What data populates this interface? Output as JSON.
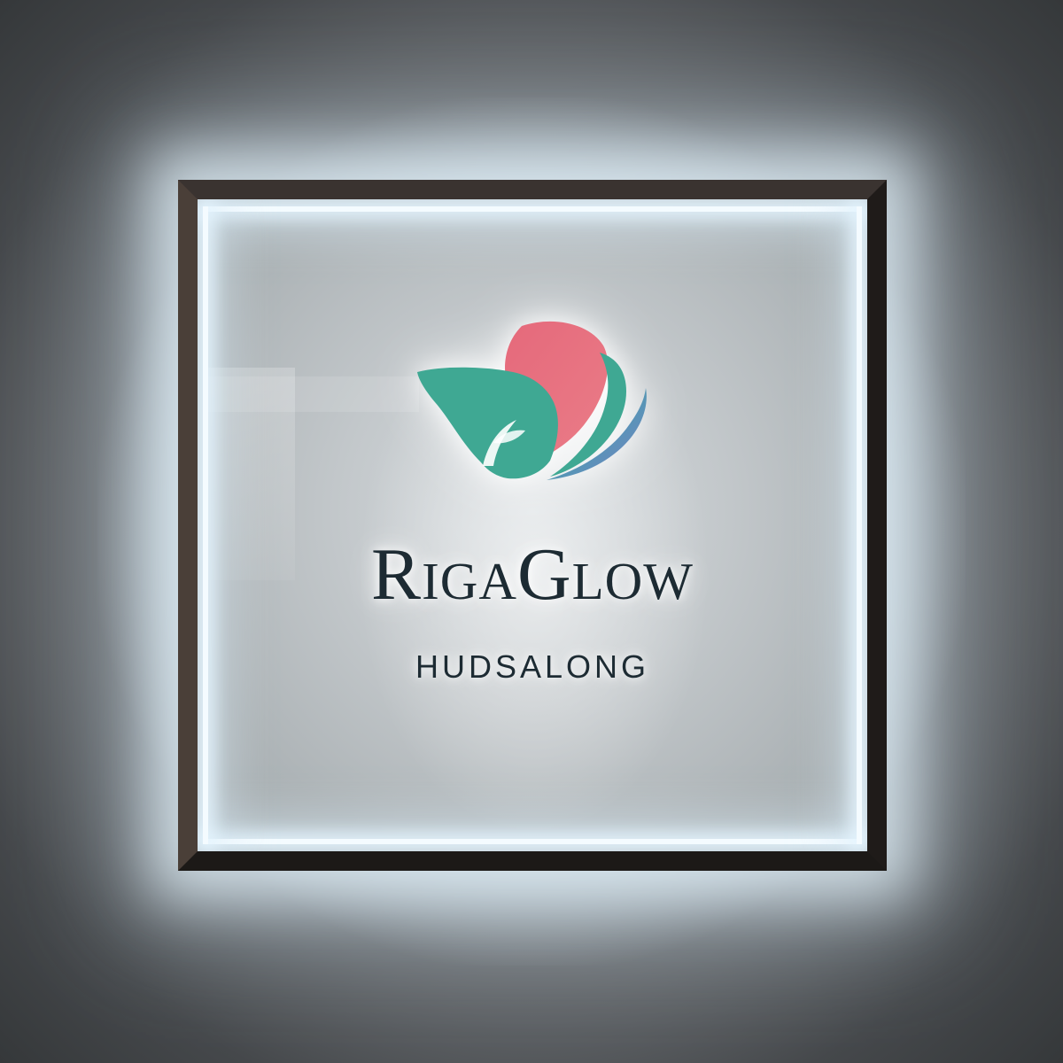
{
  "sign": {
    "brand_name": "RigaGlow",
    "subtitle": "HUDSALONG"
  },
  "colors": {
    "petal_pink": "#e56f7e",
    "leaf_teal": "#3fa893",
    "wing_blue": "#6d7fc0",
    "text_dark": "#1d2b33",
    "frame": "#2a2522"
  },
  "icons": {
    "logo": "lotus-leaf-logo-icon"
  }
}
